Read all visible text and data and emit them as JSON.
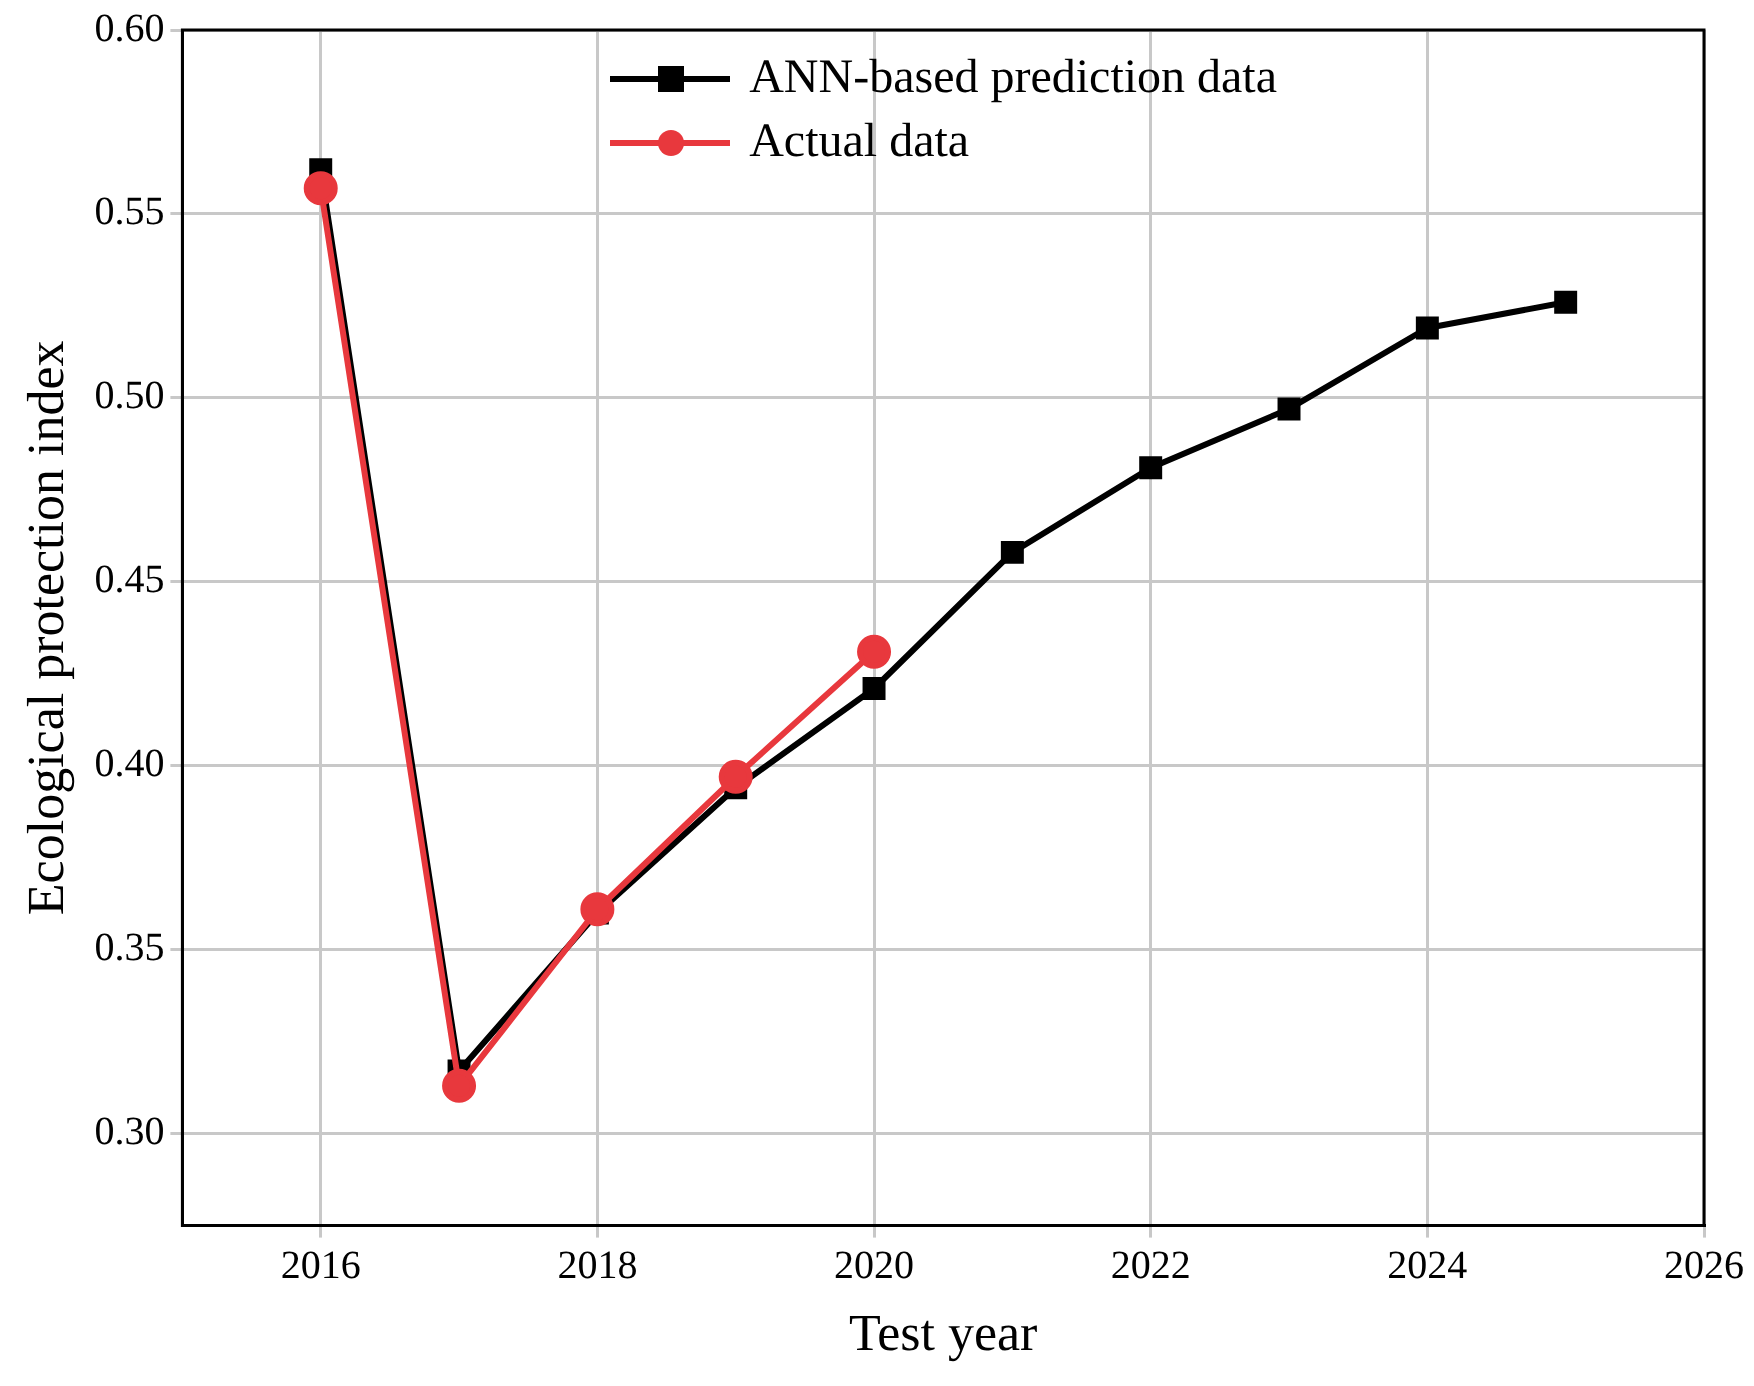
{
  "chart_data": {
    "type": "line",
    "xlabel": "Test year",
    "ylabel": "Ecological protection index",
    "x": [
      2016,
      2017,
      2018,
      2019,
      2020,
      2021,
      2022,
      2023,
      2024,
      2025
    ],
    "series": [
      {
        "name": "ANN-based prediction data",
        "color": "#000000",
        "marker": "square",
        "values": [
          0.562,
          0.317,
          0.36,
          0.394,
          0.421,
          0.458,
          0.481,
          0.497,
          0.519,
          0.526
        ]
      },
      {
        "name": "Actual data",
        "color": "#e8383d",
        "marker": "circle",
        "values": [
          0.557,
          0.313,
          0.361,
          0.397,
          0.431,
          null,
          null,
          null,
          null,
          null
        ]
      }
    ],
    "xlim": [
      2015,
      2026
    ],
    "xticks": [
      2016,
      2018,
      2020,
      2022,
      2024,
      2026
    ],
    "ylim": [
      0.275,
      0.6
    ],
    "yticks": [
      {
        "value": 0.3,
        "label": "0.30"
      },
      {
        "value": 0.35,
        "label": "0.35"
      },
      {
        "value": 0.4,
        "label": "0.40"
      },
      {
        "value": 0.45,
        "label": "0.45"
      },
      {
        "value": 0.5,
        "label": "0.50"
      },
      {
        "value": 0.55,
        "label": "0.55"
      },
      {
        "value": 0.6,
        "label": "0.60"
      }
    ],
    "grid": true,
    "legend": "top",
    "line_style": "solid"
  }
}
